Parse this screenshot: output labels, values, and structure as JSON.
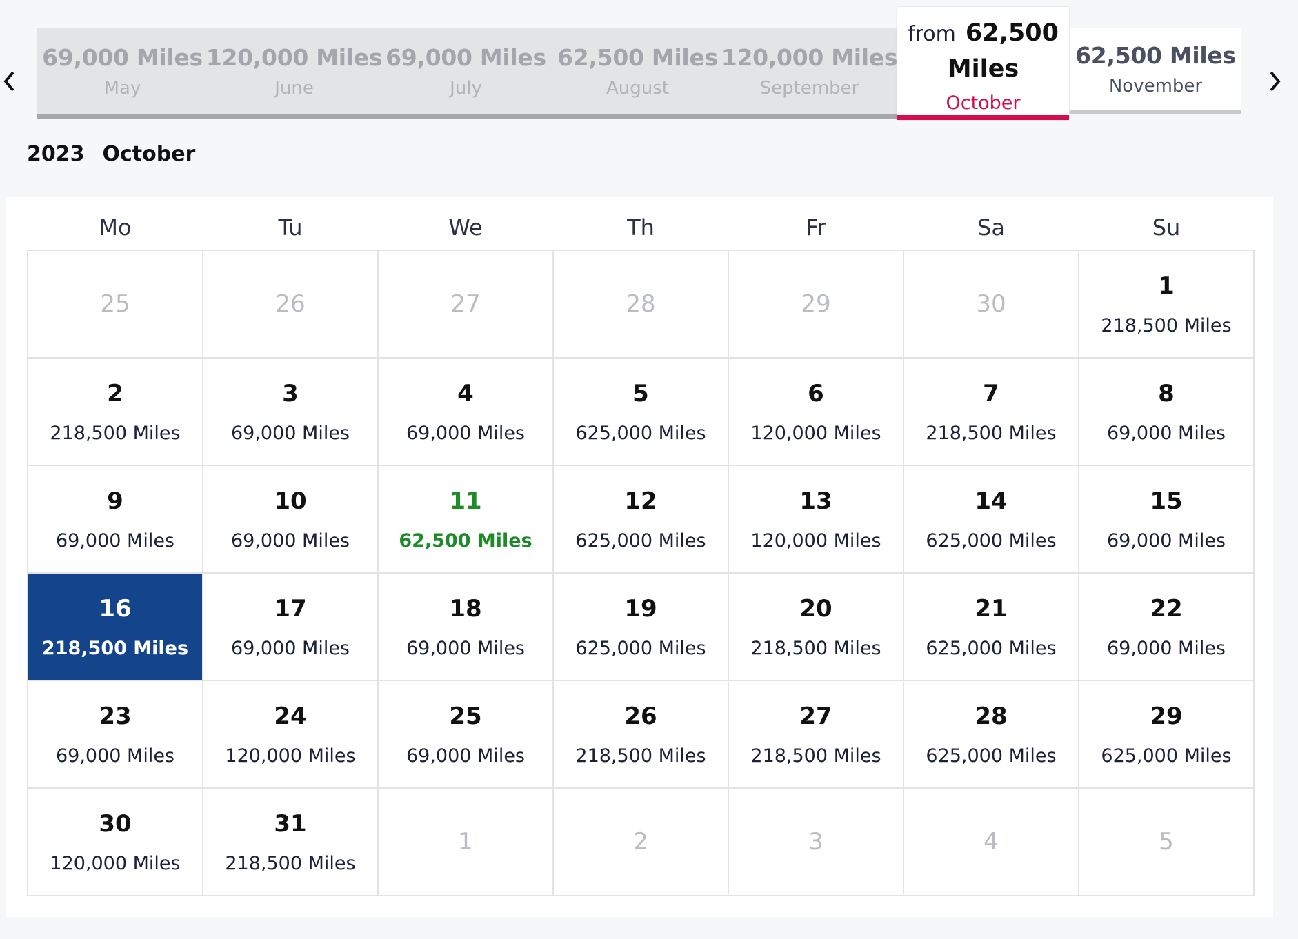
{
  "month_strip": [
    {
      "price": "69,000 Miles",
      "month": "May"
    },
    {
      "price": "120,000 Miles",
      "month": "June"
    },
    {
      "price": "69,000 Miles",
      "month": "July"
    },
    {
      "price": "62,500 Miles",
      "month": "August"
    },
    {
      "price": "120,000 Miles",
      "month": "September"
    },
    {
      "from_label": "from",
      "price_number": "62,500",
      "price_unit": "Miles",
      "month": "October"
    },
    {
      "price": "62,500 Miles",
      "month": "November"
    }
  ],
  "calendar": {
    "year": "2023",
    "month": "October",
    "weekdays": [
      "Mo",
      "Tu",
      "We",
      "Th",
      "Fr",
      "Sa",
      "Su"
    ],
    "weeks": [
      [
        {
          "day": "25",
          "price": "",
          "type": "outside"
        },
        {
          "day": "26",
          "price": "",
          "type": "outside"
        },
        {
          "day": "27",
          "price": "",
          "type": "outside"
        },
        {
          "day": "28",
          "price": "",
          "type": "outside"
        },
        {
          "day": "29",
          "price": "",
          "type": "outside"
        },
        {
          "day": "30",
          "price": "",
          "type": "outside"
        },
        {
          "day": "1",
          "price": "218,500 Miles",
          "type": "normal"
        }
      ],
      [
        {
          "day": "2",
          "price": "218,500 Miles",
          "type": "normal"
        },
        {
          "day": "3",
          "price": "69,000 Miles",
          "type": "normal"
        },
        {
          "day": "4",
          "price": "69,000 Miles",
          "type": "normal"
        },
        {
          "day": "5",
          "price": "625,000 Miles",
          "type": "normal"
        },
        {
          "day": "6",
          "price": "120,000 Miles",
          "type": "normal"
        },
        {
          "day": "7",
          "price": "218,500 Miles",
          "type": "normal"
        },
        {
          "day": "8",
          "price": "69,000 Miles",
          "type": "normal"
        }
      ],
      [
        {
          "day": "9",
          "price": "69,000 Miles",
          "type": "normal"
        },
        {
          "day": "10",
          "price": "69,000 Miles",
          "type": "normal"
        },
        {
          "day": "11",
          "price": "62,500 Miles",
          "type": "cheapest"
        },
        {
          "day": "12",
          "price": "625,000 Miles",
          "type": "normal"
        },
        {
          "day": "13",
          "price": "120,000 Miles",
          "type": "normal"
        },
        {
          "day": "14",
          "price": "625,000 Miles",
          "type": "normal"
        },
        {
          "day": "15",
          "price": "69,000 Miles",
          "type": "normal"
        }
      ],
      [
        {
          "day": "16",
          "price": "218,500 Miles",
          "type": "selected"
        },
        {
          "day": "17",
          "price": "69,000 Miles",
          "type": "normal"
        },
        {
          "day": "18",
          "price": "69,000 Miles",
          "type": "normal"
        },
        {
          "day": "19",
          "price": "625,000 Miles",
          "type": "normal"
        },
        {
          "day": "20",
          "price": "218,500 Miles",
          "type": "normal"
        },
        {
          "day": "21",
          "price": "625,000 Miles",
          "type": "normal"
        },
        {
          "day": "22",
          "price": "69,000 Miles",
          "type": "normal"
        }
      ],
      [
        {
          "day": "23",
          "price": "69,000 Miles",
          "type": "normal"
        },
        {
          "day": "24",
          "price": "120,000 Miles",
          "type": "normal"
        },
        {
          "day": "25",
          "price": "69,000 Miles",
          "type": "normal"
        },
        {
          "day": "26",
          "price": "218,500 Miles",
          "type": "normal"
        },
        {
          "day": "27",
          "price": "218,500 Miles",
          "type": "normal"
        },
        {
          "day": "28",
          "price": "625,000 Miles",
          "type": "normal"
        },
        {
          "day": "29",
          "price": "625,000 Miles",
          "type": "normal"
        }
      ],
      [
        {
          "day": "30",
          "price": "120,000 Miles",
          "type": "normal"
        },
        {
          "day": "31",
          "price": "218,500 Miles",
          "type": "normal"
        },
        {
          "day": "1",
          "price": "",
          "type": "outside"
        },
        {
          "day": "2",
          "price": "",
          "type": "outside"
        },
        {
          "day": "3",
          "price": "",
          "type": "outside"
        },
        {
          "day": "4",
          "price": "",
          "type": "outside"
        },
        {
          "day": "5",
          "price": "",
          "type": "outside"
        }
      ]
    ]
  },
  "icons": {
    "prev": "chevron-left-icon",
    "next": "chevron-right-icon"
  },
  "colors": {
    "selected_bg": "#13448c",
    "cheapest": "#1e8a2a",
    "active_month": "#d40e4d"
  }
}
